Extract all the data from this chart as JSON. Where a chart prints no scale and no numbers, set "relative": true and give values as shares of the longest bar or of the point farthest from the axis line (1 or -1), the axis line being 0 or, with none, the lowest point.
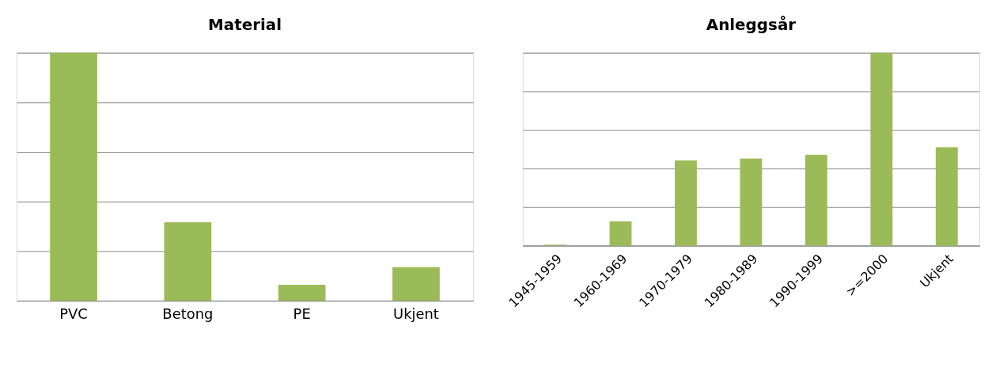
{
  "chart_data": [
    {
      "type": "bar",
      "title": "Material",
      "categories": [
        "PVC",
        "Betong",
        "PE",
        "Ukjent"
      ],
      "values": [
        1,
        0.316,
        0.064,
        0.135
      ],
      "color": "#9bbb59",
      "relative": true,
      "grid": "y",
      "legend": false
    },
    {
      "type": "bar",
      "title": "Anleggsår",
      "categories": [
        "1945-1959",
        "1960-1969",
        "1970-1979",
        "1980-1989",
        "1990-1999",
        ">=2000",
        "Ukjent"
      ],
      "values": [
        0.005,
        0.126,
        0.442,
        0.451,
        0.471,
        1,
        0.51
      ],
      "color": "#9bbb59",
      "relative": true,
      "grid": "y",
      "legend": false
    }
  ]
}
